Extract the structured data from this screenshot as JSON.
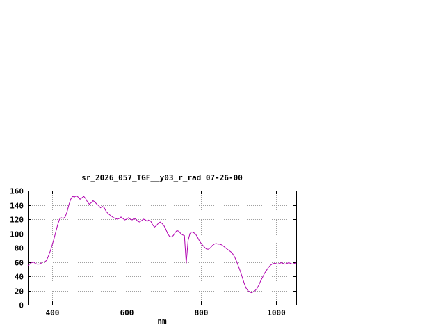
{
  "window": {
    "background": "#ffffff"
  },
  "chart_data": {
    "type": "line",
    "title": "sr_2026_057_TGF__y03_r_rad 07-26-00",
    "xlabel": "nm",
    "ylabel": "",
    "xlim": [
      335,
      1055
    ],
    "ylim": [
      0,
      160
    ],
    "xticks": [
      400,
      600,
      800,
      1000
    ],
    "yticks": [
      0,
      20,
      40,
      60,
      80,
      100,
      120,
      140,
      160
    ],
    "grid": true,
    "legend": "none",
    "line_color": "#b000b0",
    "border_color": "#000000",
    "grid_color": "#a0a0a0",
    "points": [
      [
        335,
        55
      ],
      [
        340,
        57
      ],
      [
        345,
        59
      ],
      [
        350,
        60
      ],
      [
        355,
        58
      ],
      [
        360,
        57
      ],
      [
        365,
        57
      ],
      [
        370,
        58
      ],
      [
        375,
        60
      ],
      [
        380,
        60
      ],
      [
        385,
        62
      ],
      [
        390,
        68
      ],
      [
        395,
        75
      ],
      [
        400,
        83
      ],
      [
        405,
        92
      ],
      [
        410,
        102
      ],
      [
        415,
        112
      ],
      [
        420,
        120
      ],
      [
        425,
        122
      ],
      [
        430,
        121
      ],
      [
        435,
        123
      ],
      [
        440,
        130
      ],
      [
        445,
        140
      ],
      [
        450,
        148
      ],
      [
        455,
        152
      ],
      [
        460,
        151
      ],
      [
        465,
        153
      ],
      [
        470,
        151
      ],
      [
        475,
        148
      ],
      [
        480,
        150
      ],
      [
        485,
        152
      ],
      [
        490,
        149
      ],
      [
        495,
        144
      ],
      [
        500,
        141
      ],
      [
        505,
        143
      ],
      [
        510,
        146
      ],
      [
        515,
        144
      ],
      [
        520,
        141
      ],
      [
        525,
        139
      ],
      [
        530,
        136
      ],
      [
        535,
        138
      ],
      [
        540,
        136
      ],
      [
        545,
        131
      ],
      [
        550,
        128
      ],
      [
        555,
        126
      ],
      [
        560,
        124
      ],
      [
        565,
        122
      ],
      [
        570,
        121
      ],
      [
        575,
        120
      ],
      [
        580,
        121
      ],
      [
        585,
        123
      ],
      [
        590,
        121
      ],
      [
        595,
        119
      ],
      [
        600,
        120
      ],
      [
        605,
        122
      ],
      [
        610,
        120
      ],
      [
        615,
        119
      ],
      [
        620,
        121
      ],
      [
        625,
        120
      ],
      [
        630,
        117
      ],
      [
        635,
        116
      ],
      [
        640,
        118
      ],
      [
        645,
        120
      ],
      [
        650,
        119
      ],
      [
        655,
        117
      ],
      [
        660,
        119
      ],
      [
        665,
        117
      ],
      [
        670,
        112
      ],
      [
        675,
        109
      ],
      [
        680,
        111
      ],
      [
        685,
        114
      ],
      [
        690,
        116
      ],
      [
        695,
        114
      ],
      [
        700,
        111
      ],
      [
        705,
        106
      ],
      [
        710,
        100
      ],
      [
        715,
        96
      ],
      [
        720,
        95
      ],
      [
        725,
        97
      ],
      [
        730,
        101
      ],
      [
        735,
        104
      ],
      [
        740,
        103
      ],
      [
        745,
        100
      ],
      [
        750,
        98
      ],
      [
        755,
        97
      ],
      [
        760,
        58
      ],
      [
        765,
        90
      ],
      [
        770,
        100
      ],
      [
        775,
        102
      ],
      [
        780,
        101
      ],
      [
        785,
        99
      ],
      [
        790,
        95
      ],
      [
        795,
        90
      ],
      [
        800,
        86
      ],
      [
        805,
        83
      ],
      [
        810,
        80
      ],
      [
        815,
        78
      ],
      [
        820,
        78
      ],
      [
        825,
        80
      ],
      [
        830,
        83
      ],
      [
        835,
        85
      ],
      [
        840,
        86
      ],
      [
        845,
        85
      ],
      [
        850,
        85
      ],
      [
        855,
        84
      ],
      [
        860,
        82
      ],
      [
        865,
        80
      ],
      [
        870,
        78
      ],
      [
        875,
        76
      ],
      [
        880,
        74
      ],
      [
        885,
        71
      ],
      [
        890,
        67
      ],
      [
        895,
        61
      ],
      [
        900,
        54
      ],
      [
        905,
        47
      ],
      [
        910,
        39
      ],
      [
        915,
        31
      ],
      [
        920,
        24
      ],
      [
        925,
        20
      ],
      [
        930,
        18
      ],
      [
        935,
        17
      ],
      [
        940,
        18
      ],
      [
        945,
        20
      ],
      [
        950,
        23
      ],
      [
        955,
        28
      ],
      [
        960,
        34
      ],
      [
        965,
        39
      ],
      [
        970,
        44
      ],
      [
        975,
        48
      ],
      [
        980,
        52
      ],
      [
        985,
        55
      ],
      [
        990,
        57
      ],
      [
        995,
        58
      ],
      [
        1000,
        58
      ],
      [
        1005,
        57
      ],
      [
        1010,
        58
      ],
      [
        1015,
        59
      ],
      [
        1020,
        58
      ],
      [
        1025,
        57
      ],
      [
        1030,
        58
      ],
      [
        1035,
        59
      ],
      [
        1040,
        58
      ],
      [
        1045,
        57
      ],
      [
        1050,
        58
      ],
      [
        1055,
        59
      ]
    ]
  }
}
